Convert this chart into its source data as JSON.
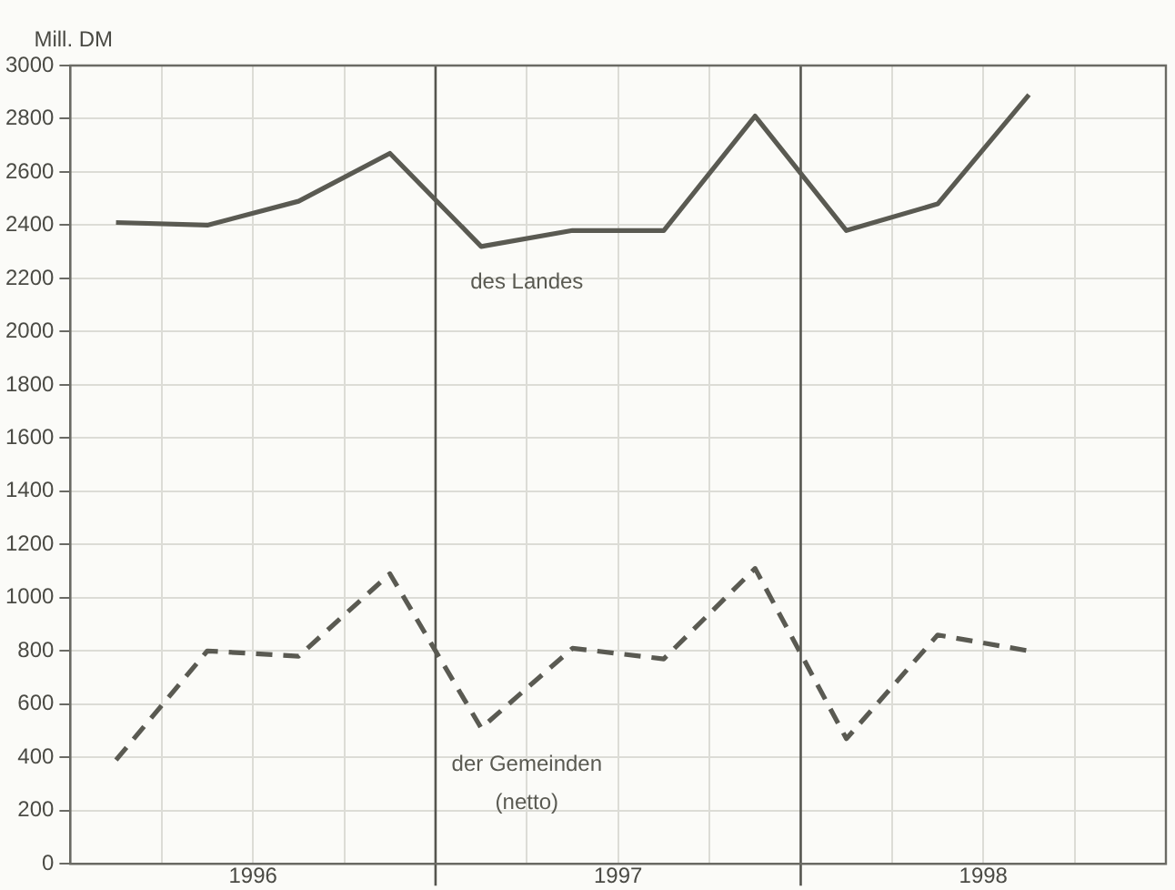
{
  "chart_data": {
    "type": "line",
    "ylabel": "Mill. DM",
    "x": [
      1996.125,
      1996.375,
      1996.625,
      1996.875,
      1997.125,
      1997.375,
      1997.625,
      1997.875,
      1998.125,
      1998.375,
      1998.625
    ],
    "series": [
      {
        "name": "des Landes",
        "color": "#5a5a52",
        "line_style": "solid",
        "values": [
          2410,
          2400,
          2490,
          2670,
          2320,
          2380,
          2380,
          2810,
          2380,
          2480,
          2890
        ]
      },
      {
        "name": "der Gemeinden\n(netto)",
        "color": "#5a5a52",
        "line_style": "dashed",
        "values": [
          390,
          800,
          780,
          1090,
          510,
          810,
          770,
          1110,
          470,
          860,
          800
        ]
      }
    ],
    "xlim": [
      1996,
      1999
    ],
    "xticks": [
      {
        "value": 1996.25,
        "label": null
      },
      {
        "value": 1996.5,
        "label": "1996"
      },
      {
        "value": 1996.75,
        "label": null
      },
      {
        "value": 1997.25,
        "label": null
      },
      {
        "value": 1997.5,
        "label": "1997"
      },
      {
        "value": 1997.75,
        "label": null
      },
      {
        "value": 1998.25,
        "label": null
      },
      {
        "value": 1998.5,
        "label": "1998"
      },
      {
        "value": 1998.75,
        "label": null
      }
    ],
    "ylim": [
      0,
      3000
    ],
    "yticks": [
      0,
      200,
      400,
      600,
      800,
      1000,
      1200,
      1400,
      1600,
      1800,
      2000,
      2200,
      2400,
      2600,
      2800,
      3000
    ],
    "ref_lines": [
      {
        "axis": "x",
        "value": 1997,
        "color": "#55554f"
      },
      {
        "axis": "x",
        "value": 1998,
        "color": "#55554f"
      }
    ],
    "grid": true,
    "legend": false,
    "marker": "none"
  }
}
